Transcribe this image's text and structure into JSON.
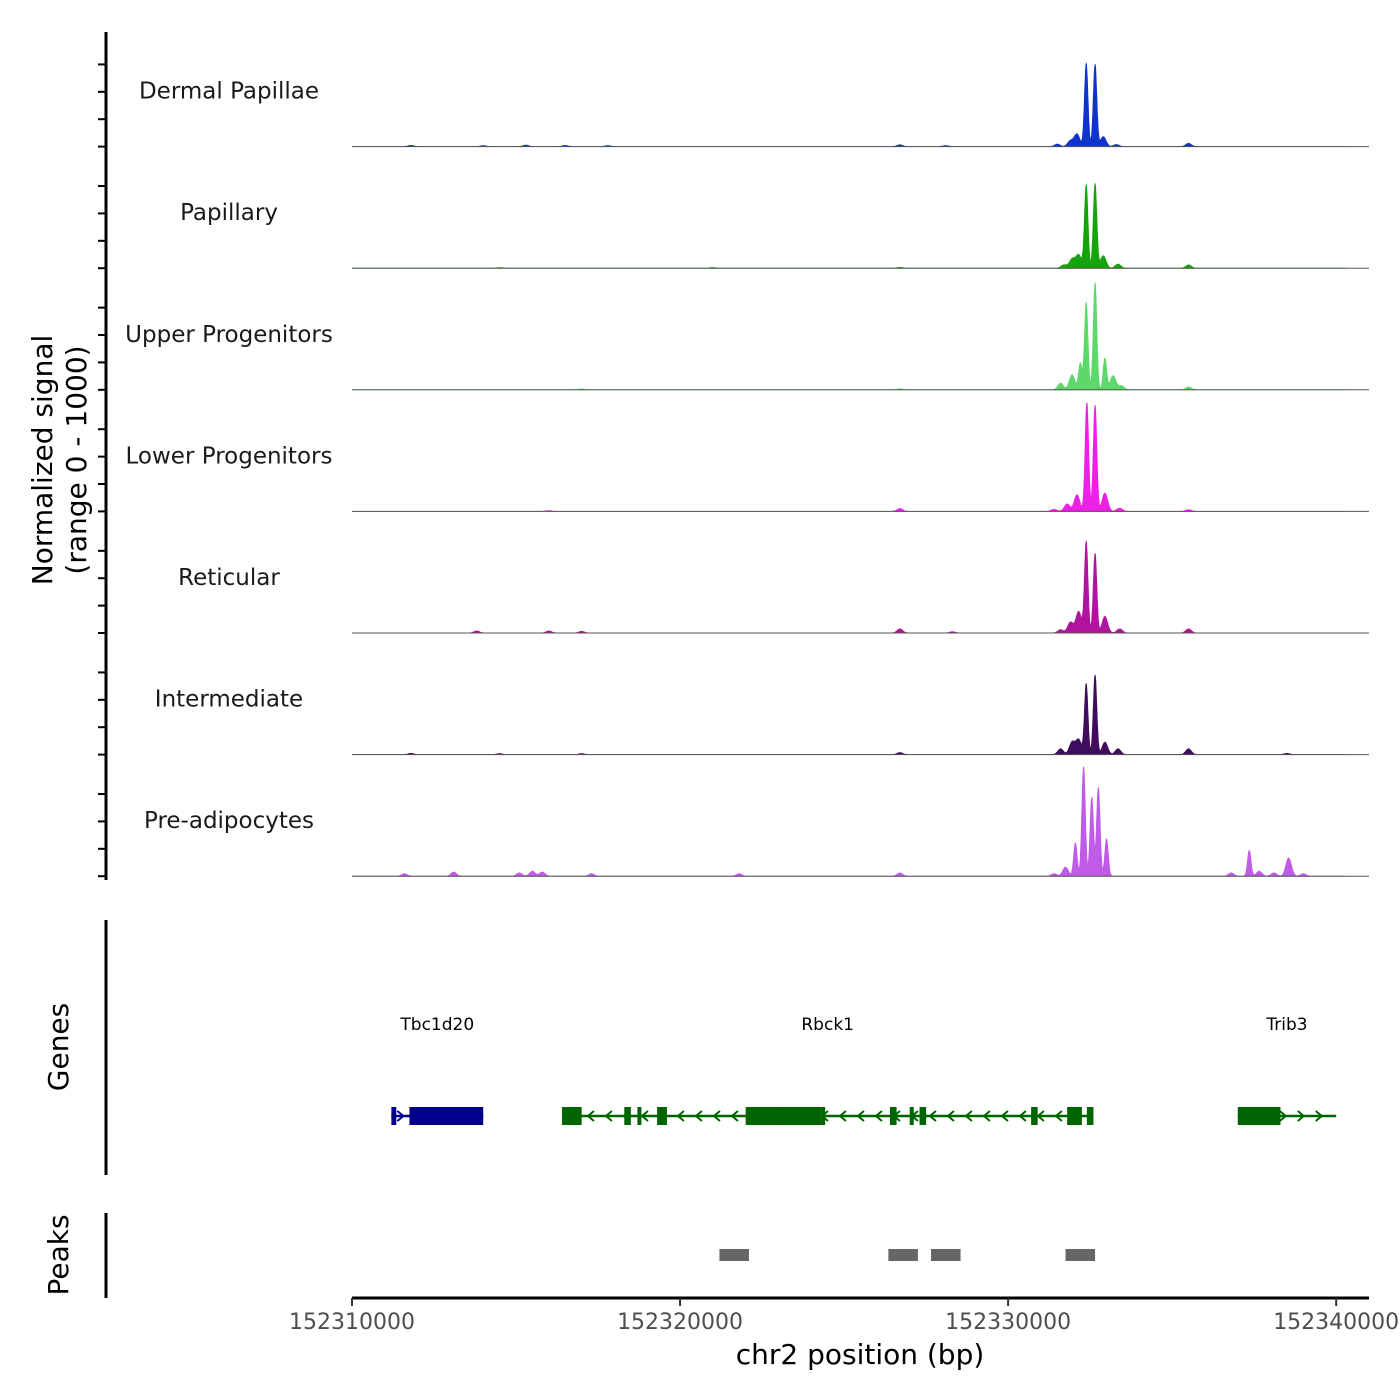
{
  "chart_data": {
    "type": "area",
    "title": "",
    "ylabel_line1": "Normalized signal",
    "ylabel_line2": "(range 0 - 1000)",
    "xlabel": "chr2 position (bp)",
    "xlim": [
      152310000,
      152341000
    ],
    "x_ticks": [
      152310000,
      152320000,
      152330000,
      152340000
    ],
    "x_tick_labels": [
      "152310000",
      "152320000",
      "152330000",
      "152340000"
    ],
    "ylim": [
      0,
      1000
    ],
    "tracks": [
      {
        "name": "Dermal Papillae",
        "color": "#1033cc",
        "peaks": [
          {
            "x": 152311800,
            "h": 15
          },
          {
            "x": 152314000,
            "h": 12
          },
          {
            "x": 152315300,
            "h": 18
          },
          {
            "x": 152316500,
            "h": 14
          },
          {
            "x": 152317800,
            "h": 12
          },
          {
            "x": 152326700,
            "h": 22
          },
          {
            "x": 152328100,
            "h": 12
          },
          {
            "x": 152331500,
            "h": 30
          },
          {
            "x": 152331900,
            "h": 70
          },
          {
            "x": 152332100,
            "h": 150
          },
          {
            "x": 152332380,
            "h": 1000
          },
          {
            "x": 152332650,
            "h": 990
          },
          {
            "x": 152332900,
            "h": 120
          },
          {
            "x": 152333300,
            "h": 25
          },
          {
            "x": 152335500,
            "h": 40
          }
        ]
      },
      {
        "name": "Papillary",
        "color": "#17a30b",
        "peaks": [
          {
            "x": 152314500,
            "h": 8
          },
          {
            "x": 152321000,
            "h": 8
          },
          {
            "x": 152326700,
            "h": 10
          },
          {
            "x": 152331700,
            "h": 40
          },
          {
            "x": 152331950,
            "h": 110
          },
          {
            "x": 152332150,
            "h": 160
          },
          {
            "x": 152332380,
            "h": 1000
          },
          {
            "x": 152332650,
            "h": 1020
          },
          {
            "x": 152332900,
            "h": 150
          },
          {
            "x": 152333350,
            "h": 50
          },
          {
            "x": 152335500,
            "h": 40
          }
        ]
      },
      {
        "name": "Upper Progenitors",
        "color": "#5cd96a",
        "peaks": [
          {
            "x": 152317000,
            "h": 10
          },
          {
            "x": 152326700,
            "h": 12
          },
          {
            "x": 152331600,
            "h": 80
          },
          {
            "x": 152331950,
            "h": 180
          },
          {
            "x": 152332200,
            "h": 320
          },
          {
            "x": 152332380,
            "h": 1050
          },
          {
            "x": 152332650,
            "h": 1290
          },
          {
            "x": 152332950,
            "h": 380
          },
          {
            "x": 152333200,
            "h": 170
          },
          {
            "x": 152333450,
            "h": 50
          },
          {
            "x": 152335500,
            "h": 35
          }
        ]
      },
      {
        "name": "Lower Progenitors",
        "color": "#ee1fe6",
        "peaks": [
          {
            "x": 152316000,
            "h": 10
          },
          {
            "x": 152326700,
            "h": 35
          },
          {
            "x": 152331400,
            "h": 25
          },
          {
            "x": 152331800,
            "h": 90
          },
          {
            "x": 152332100,
            "h": 200
          },
          {
            "x": 152332400,
            "h": 1310
          },
          {
            "x": 152332650,
            "h": 1280
          },
          {
            "x": 152332950,
            "h": 220
          },
          {
            "x": 152333400,
            "h": 40
          },
          {
            "x": 152335500,
            "h": 20
          }
        ]
      },
      {
        "name": "Reticular",
        "color": "#b0149e",
        "peaks": [
          {
            "x": 152313800,
            "h": 25
          },
          {
            "x": 152316000,
            "h": 25
          },
          {
            "x": 152317000,
            "h": 20
          },
          {
            "x": 152326700,
            "h": 50
          },
          {
            "x": 152328300,
            "h": 15
          },
          {
            "x": 152331600,
            "h": 40
          },
          {
            "x": 152331900,
            "h": 130
          },
          {
            "x": 152332150,
            "h": 260
          },
          {
            "x": 152332380,
            "h": 1100
          },
          {
            "x": 152332650,
            "h": 960
          },
          {
            "x": 152332950,
            "h": 200
          },
          {
            "x": 152333400,
            "h": 50
          },
          {
            "x": 152335500,
            "h": 50
          }
        ]
      },
      {
        "name": "Intermediate",
        "color": "#3f0d5e",
        "peaks": [
          {
            "x": 152311800,
            "h": 15
          },
          {
            "x": 152314500,
            "h": 12
          },
          {
            "x": 152317000,
            "h": 12
          },
          {
            "x": 152326700,
            "h": 25
          },
          {
            "x": 152331600,
            "h": 70
          },
          {
            "x": 152331950,
            "h": 150
          },
          {
            "x": 152332150,
            "h": 180
          },
          {
            "x": 152332380,
            "h": 850
          },
          {
            "x": 152332650,
            "h": 960
          },
          {
            "x": 152332950,
            "h": 150
          },
          {
            "x": 152333350,
            "h": 70
          },
          {
            "x": 152335500,
            "h": 70
          },
          {
            "x": 152338500,
            "h": 15
          }
        ]
      },
      {
        "name": "Pre-adipocytes",
        "color": "#c05be8",
        "peaks": [
          {
            "x": 152311600,
            "h": 30
          },
          {
            "x": 152313100,
            "h": 50
          },
          {
            "x": 152315100,
            "h": 40
          },
          {
            "x": 152315500,
            "h": 60
          },
          {
            "x": 152315800,
            "h": 50
          },
          {
            "x": 152317300,
            "h": 30
          },
          {
            "x": 152321800,
            "h": 30
          },
          {
            "x": 152326700,
            "h": 40
          },
          {
            "x": 152331400,
            "h": 30
          },
          {
            "x": 152331750,
            "h": 110
          },
          {
            "x": 152332050,
            "h": 400
          },
          {
            "x": 152332300,
            "h": 1320
          },
          {
            "x": 152332550,
            "h": 950
          },
          {
            "x": 152332750,
            "h": 1070
          },
          {
            "x": 152333000,
            "h": 450
          },
          {
            "x": 152336800,
            "h": 40
          },
          {
            "x": 152337350,
            "h": 310
          },
          {
            "x": 152337650,
            "h": 60
          },
          {
            "x": 152338100,
            "h": 40
          },
          {
            "x": 152338550,
            "h": 220
          },
          {
            "x": 152339000,
            "h": 30
          }
        ]
      }
    ],
    "genes_track_label": "Genes",
    "genes": [
      {
        "name": "Tbc1d20",
        "start": 152311200,
        "end": 152314000,
        "strand": "+",
        "color": "#00008b",
        "exons": [
          [
            152311200,
            152311350
          ],
          [
            152311750,
            152314000
          ]
        ]
      },
      {
        "name": "Rbck1",
        "start": 152316400,
        "end": 152332600,
        "strand": "-",
        "color": "#006400",
        "exons": [
          [
            152316400,
            152317000
          ],
          [
            152318300,
            152318500
          ],
          [
            152318700,
            152318800
          ],
          [
            152319300,
            152319600
          ],
          [
            152322000,
            152323000
          ],
          [
            152323000,
            152324300
          ],
          [
            152324300,
            152324400
          ],
          [
            152326400,
            152326600
          ],
          [
            152327000,
            152327100
          ],
          [
            152327300,
            152327500
          ],
          [
            152330700,
            152330900
          ],
          [
            152331800,
            152332250
          ],
          [
            152332400,
            152332600
          ]
        ]
      },
      {
        "name": "Trib3",
        "start": 152337000,
        "end": 152340000,
        "strand": "+",
        "color": "#006400",
        "exons": [
          [
            152337000,
            152338300
          ]
        ]
      }
    ],
    "peaks_track_label": "Peaks",
    "peak_regions": [
      [
        152321200,
        152322100
      ],
      [
        152326350,
        152327250
      ],
      [
        152327650,
        152328550
      ],
      [
        152331750,
        152332650
      ]
    ]
  }
}
